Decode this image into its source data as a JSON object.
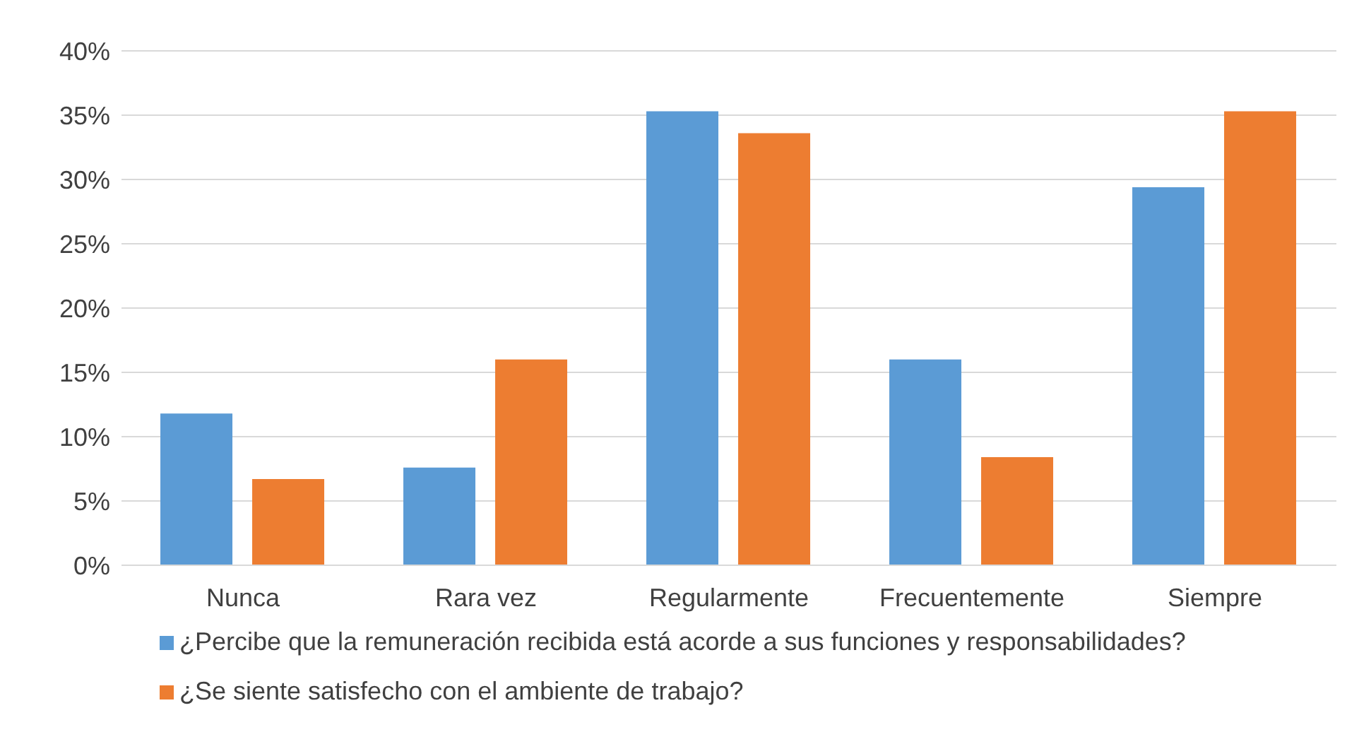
{
  "chart_data": {
    "type": "bar",
    "categories": [
      "Nunca",
      "Rara vez",
      "Regularmente",
      "Frecuentemente",
      "Siempre"
    ],
    "series": [
      {
        "name": "¿Percibe que la remuneración recibida está acorde a sus funciones y responsabilidades?",
        "color": "#5b9bd5",
        "values": [
          11.8,
          7.6,
          35.3,
          16,
          29.4
        ]
      },
      {
        "name": "¿Se siente satisfecho con el ambiente de trabajo?",
        "color": "#ed7d31",
        "values": [
          6.7,
          16,
          33.6,
          8.4,
          35.3
        ]
      }
    ],
    "ylim": [
      0,
      40
    ],
    "yticks": [
      {
        "value": 0,
        "label": "0%"
      },
      {
        "value": 5,
        "label": "5%"
      },
      {
        "value": 10,
        "label": "10%"
      },
      {
        "value": 15,
        "label": "15%"
      },
      {
        "value": 20,
        "label": "20%"
      },
      {
        "value": 25,
        "label": "25%"
      },
      {
        "value": 30,
        "label": "30%"
      },
      {
        "value": 35,
        "label": "35%"
      },
      {
        "value": 40,
        "label": "40%"
      }
    ],
    "grid": "y",
    "legend": "bottom"
  }
}
